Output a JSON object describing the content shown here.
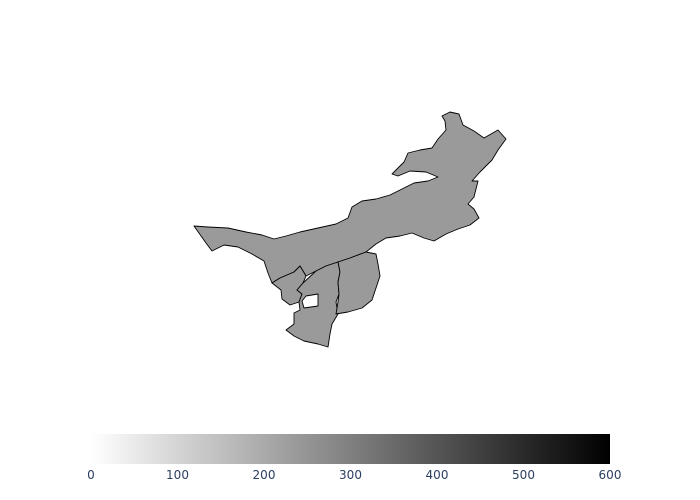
{
  "map": {
    "type": "choropleth",
    "regions": [
      {
        "name": "",
        "value": 300
      },
      {
        "name": "",
        "value": 300
      },
      {
        "name": "",
        "value": 300
      },
      {
        "name": "",
        "value": 300
      }
    ]
  },
  "colorbar": {
    "orientation": "horizontal",
    "range": [
      0,
      600
    ],
    "colorscale": [
      "#ffffff",
      "#000000"
    ],
    "ticks": [
      {
        "value": 0,
        "label": "0"
      },
      {
        "value": 100,
        "label": "100"
      },
      {
        "value": 200,
        "label": "200"
      },
      {
        "value": 300,
        "label": "300"
      },
      {
        "value": 400,
        "label": "400"
      },
      {
        "value": 500,
        "label": "500"
      },
      {
        "value": 600,
        "label": "600"
      }
    ]
  },
  "colors": {
    "region_fill": "#9a9a9a",
    "border": "#000000",
    "tick_text": "#2a3f5f"
  }
}
